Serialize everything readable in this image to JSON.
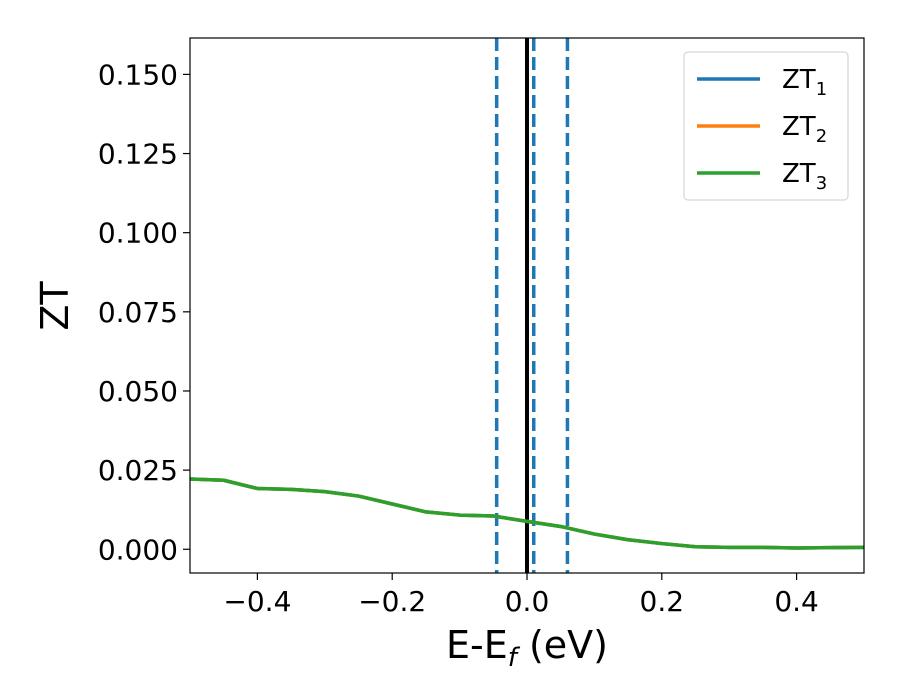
{
  "chart_data": {
    "type": "line",
    "xlabel": {
      "base": "E-E",
      "sub": "f",
      "suffix": " (eV)"
    },
    "ylabel": "ZT",
    "xlim": [
      -0.5,
      0.5
    ],
    "ylim": [
      -0.0075,
      0.1615
    ],
    "x_ticks": [
      -0.4,
      -0.2,
      0.0,
      0.2,
      0.4
    ],
    "x_tick_labels": [
      "−0.4",
      "−0.2",
      "0.0",
      "0.2",
      "0.4"
    ],
    "y_ticks": [
      0.0,
      0.025,
      0.05,
      0.075,
      0.1,
      0.125,
      0.15
    ],
    "y_tick_labels": [
      "0.000",
      "0.025",
      "0.050",
      "0.075",
      "0.100",
      "0.125",
      "0.150"
    ],
    "grid": false,
    "legend_position": "top-right",
    "series": [
      {
        "name": "ZT",
        "name_sub": "1",
        "color": "#1f77b4",
        "x": [
          -0.5,
          -0.45,
          -0.4,
          -0.35,
          -0.3,
          -0.25,
          -0.2,
          -0.15,
          -0.1,
          -0.05,
          0.0,
          0.05,
          0.1,
          0.15,
          0.2,
          0.25,
          0.3,
          0.35,
          0.4,
          0.45,
          0.5
        ],
        "y": [
          0.0222,
          0.0218,
          0.0192,
          0.0189,
          0.0182,
          0.0168,
          0.0143,
          0.0118,
          0.0108,
          0.0105,
          0.0088,
          0.0072,
          0.0048,
          0.003,
          0.0018,
          0.0008,
          0.0006,
          0.0006,
          0.0004,
          0.0005,
          0.0006
        ]
      },
      {
        "name": "ZT",
        "name_sub": "2",
        "color": "#ff7f0e",
        "x": [
          -0.5,
          -0.45,
          -0.4,
          -0.35,
          -0.3,
          -0.25,
          -0.2,
          -0.15,
          -0.1,
          -0.05,
          0.0,
          0.05,
          0.1,
          0.15,
          0.2,
          0.25,
          0.3,
          0.35,
          0.4,
          0.45,
          0.5
        ],
        "y": [
          0.0222,
          0.0218,
          0.0192,
          0.0189,
          0.0182,
          0.0168,
          0.0143,
          0.0118,
          0.0108,
          0.0105,
          0.0088,
          0.0072,
          0.0048,
          0.003,
          0.0018,
          0.0008,
          0.0006,
          0.0006,
          0.0004,
          0.0005,
          0.0006
        ]
      },
      {
        "name": "ZT",
        "name_sub": "3",
        "color": "#2ca02c",
        "x": [
          -0.5,
          -0.45,
          -0.4,
          -0.35,
          -0.3,
          -0.25,
          -0.2,
          -0.15,
          -0.1,
          -0.05,
          0.0,
          0.05,
          0.1,
          0.15,
          0.2,
          0.25,
          0.3,
          0.35,
          0.4,
          0.45,
          0.5
        ],
        "y": [
          0.0222,
          0.0218,
          0.0192,
          0.0189,
          0.0182,
          0.0168,
          0.0143,
          0.0118,
          0.0108,
          0.0105,
          0.0088,
          0.0072,
          0.0048,
          0.003,
          0.0018,
          0.0008,
          0.0006,
          0.0006,
          0.0004,
          0.0005,
          0.0006
        ]
      }
    ],
    "vertical_lines": [
      {
        "x": -0.045,
        "style": "dashed",
        "color": "#1f77b4"
      },
      {
        "x": 0.01,
        "style": "dashed",
        "color": "#1f77b4"
      },
      {
        "x": 0.06,
        "style": "dashed",
        "color": "#1f77b4"
      },
      {
        "x": 0.0,
        "style": "solid",
        "color": "#000000"
      }
    ]
  }
}
